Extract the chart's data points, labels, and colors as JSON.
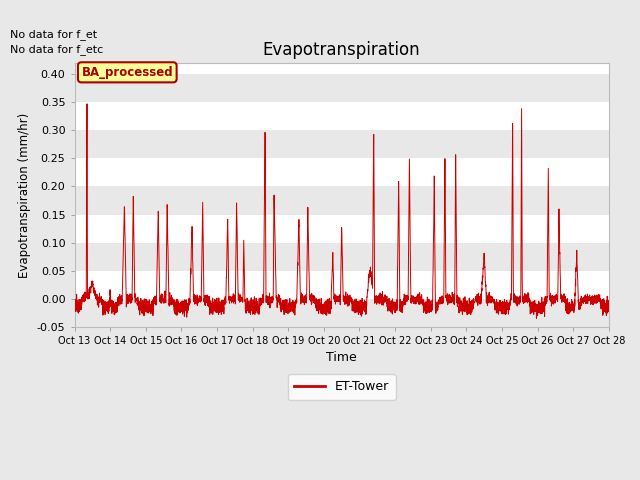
{
  "title": "Evapotranspiration",
  "ylabel": "Evapotranspiration (mm/hr)",
  "xlabel": "Time",
  "ylim": [
    -0.05,
    0.42
  ],
  "background_color": "#e8e8e8",
  "plot_bg_color": "#ffffff",
  "band_colors": [
    "#e8e8e8",
    "#ffffff"
  ],
  "grid_color": "#e0e0e0",
  "text_annotations": [
    "No data for f_et",
    "No data for f_etc"
  ],
  "legend_label": "ET-Tower",
  "legend_line_color": "#cc0000",
  "box_label": "BA_processed",
  "box_face_color": "#ffff99",
  "box_edge_color": "#aa0000",
  "box_text_color": "#aa0000",
  "line_color": "#cc0000",
  "x_tick_labels": [
    "Oct 13",
    "Oct 14",
    "Oct 15",
    "Oct 16",
    "Oct 17",
    "Oct 18",
    "Oct 19",
    "Oct 20",
    "Oct 21",
    "Oct 22",
    "Oct 23",
    "Oct 24",
    "Oct 25",
    "Oct 26",
    "Oct 27",
    "Oct 28"
  ],
  "yticks": [
    -0.05,
    0.0,
    0.05,
    0.1,
    0.15,
    0.2,
    0.25,
    0.3,
    0.35,
    0.4
  ],
  "figsize": [
    6.4,
    4.8
  ],
  "dpi": 100
}
